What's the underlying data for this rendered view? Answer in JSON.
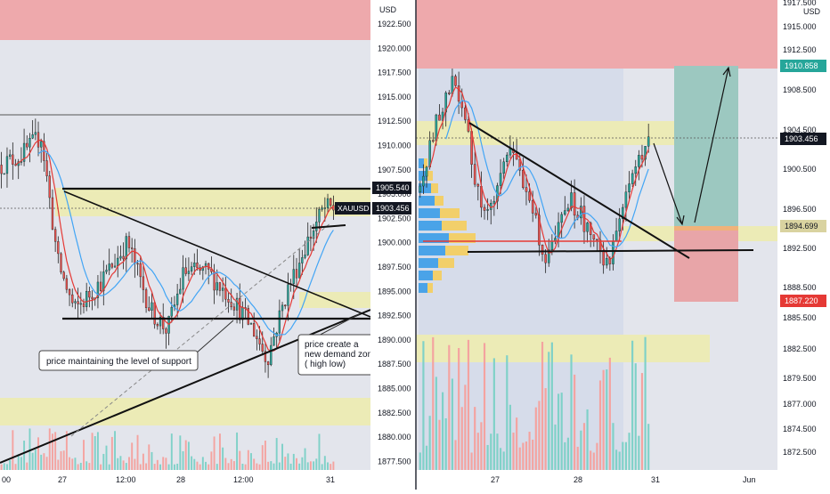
{
  "colors": {
    "bg": "#ffffff",
    "pane_bg": "#e3e5ec",
    "up": "#26a69a",
    "down": "#ef5350",
    "wick": "#222222",
    "ma_fast": "#e53935",
    "ma_slow": "#42a5f5",
    "supply_zone": "#eea9ac",
    "demand_zone": "#ecebb6",
    "vol_up": "#7fd1c8",
    "vol_down": "#f4a3a0",
    "last_price_tag": "#131722",
    "target_tag": "#26a69a",
    "stop_tag": "#e53935",
    "zone_tag": "#d9d3a0"
  },
  "left_chart": {
    "currency": "USD",
    "symbol_tag": "XAUUSD",
    "price_tags": [
      "1905.540",
      "1903.456"
    ],
    "annotations": [
      "price maintaining the level of support",
      "price create a\nnew demand zone\n( high low)"
    ]
  },
  "right_chart": {
    "currency": "USD",
    "price_tags": [
      "1910.858",
      "1903.456",
      "1894.699",
      "1887.220"
    ],
    "target_price": "1910.858",
    "entry_price": "1894.699",
    "stop_price": "1887.220"
  },
  "chart_data": [
    {
      "type": "candlestick",
      "symbol": "XAUUSD",
      "ylabel": "USD",
      "ylim": [
        1876.5,
        1926.0
      ],
      "y_ticks": [
        "1922.500",
        "1920.000",
        "1917.500",
        "1915.000",
        "1912.500",
        "1910.000",
        "1907.500",
        "1905.000",
        "1902.500",
        "1900.000",
        "1897.500",
        "1895.000",
        "1892.500",
        "1890.000",
        "1887.500",
        "1885.000",
        "1882.500",
        "1880.000",
        "1877.500"
      ],
      "x_ticks": [
        "00",
        "27",
        "12:00",
        "28",
        "12:00",
        "31"
      ],
      "last_price": 1903.456,
      "zones": [
        {
          "kind": "supply",
          "low": 1921.0,
          "high": 1926.0
        },
        {
          "kind": "demand",
          "low": 1902.6,
          "high": 1905.6
        },
        {
          "kind": "demand",
          "low": 1893.5,
          "high": 1895.2
        },
        {
          "kind": "demand",
          "low": 1881.3,
          "high": 1884.2
        }
      ],
      "levels": [
        1912.6,
        1905.54,
        1892.0
      ],
      "trendlines": [
        {
          "from": [
            0.075,
            1905.5
          ],
          "to": [
            0.93,
            1891.8
          ]
        },
        {
          "from": [
            0.0,
            1878.2
          ],
          "to": [
            0.93,
            1893.5
          ]
        },
        {
          "from": [
            0.2,
            1879.0
          ],
          "to": [
            0.88,
            1903.0
          ],
          "style": "dashed"
        }
      ],
      "annotations": [
        "price maintaining the level of support",
        "price create a new demand zone ( high low)"
      ]
    },
    {
      "type": "candlestick",
      "symbol": "XAUUSD",
      "ylabel": "USD",
      "ylim": [
        1870.0,
        1917.8
      ],
      "y_ticks": [
        "1917.500",
        "1915.000",
        "1912.500",
        "1908.500",
        "1904.500",
        "1900.500",
        "1896.500",
        "1892.500",
        "1888.500",
        "1885.500",
        "1882.500",
        "1879.500",
        "1877.000",
        "1874.500",
        "1872.500"
      ],
      "x_ticks": [
        "27",
        "28",
        "31",
        "Jun"
      ],
      "last_price": 1903.456,
      "zones": [
        {
          "kind": "supply",
          "low": 1910.9,
          "high": 1918.0
        },
        {
          "kind": "demand",
          "low": 1902.8,
          "high": 1905.5
        },
        {
          "kind": "demand",
          "low": 1893.3,
          "high": 1894.7
        },
        {
          "kind": "demand",
          "low": 1881.4,
          "high": 1884.2
        }
      ],
      "position": {
        "entry": 1894.699,
        "target": 1910.858,
        "stop": 1887.22
      },
      "levels": [
        1892.6,
        1893.8
      ],
      "trendlines": [
        {
          "from": [
            0.13,
            1905.0
          ],
          "to": [
            0.73,
            1892.0
          ]
        }
      ]
    }
  ]
}
